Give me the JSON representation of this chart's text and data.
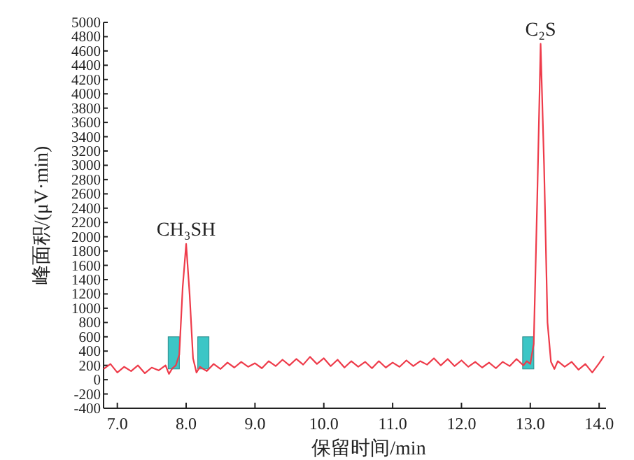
{
  "chart_data": {
    "type": "line",
    "xlabel": "保留时间/min",
    "ylabel": "峰面积/(μV·min)",
    "xlim": [
      6.8,
      14.1
    ],
    "ylim": [
      -400,
      5000
    ],
    "xticks": [
      {
        "value": 7,
        "label": "7.0"
      },
      {
        "value": 8,
        "label": "8.0"
      },
      {
        "value": 9,
        "label": "9.0"
      },
      {
        "value": 10,
        "label": "10.0"
      },
      {
        "value": 11,
        "label": "11.0"
      },
      {
        "value": 12,
        "label": "12.0"
      },
      {
        "value": 13,
        "label": "13.0"
      },
      {
        "value": 14,
        "label": "14.0"
      }
    ],
    "yticks": [
      -400,
      -200,
      0,
      200,
      400,
      600,
      800,
      1000,
      1200,
      1400,
      1600,
      1800,
      2000,
      2200,
      2400,
      2600,
      2800,
      3000,
      3200,
      3400,
      3600,
      3800,
      4000,
      4200,
      4400,
      4600,
      4800,
      5000
    ],
    "annotations": [
      {
        "text": "CH₃SH",
        "x": 8.0,
        "y": 1900
      },
      {
        "text": "C₂S",
        "x": 13.15,
        "y": 4700
      }
    ],
    "series": [
      {
        "color": "#ee3b4a",
        "x": [
          6.8,
          6.9,
          7.0,
          7.1,
          7.2,
          7.3,
          7.4,
          7.5,
          7.6,
          7.7,
          7.75,
          7.8,
          7.85,
          7.9,
          7.95,
          8.0,
          8.05,
          8.1,
          8.15,
          8.2,
          8.3,
          8.4,
          8.5,
          8.6,
          8.7,
          8.8,
          8.9,
          9.0,
          9.1,
          9.2,
          9.3,
          9.4,
          9.5,
          9.6,
          9.7,
          9.8,
          9.9,
          10.0,
          10.1,
          10.2,
          10.3,
          10.4,
          10.5,
          10.6,
          10.7,
          10.8,
          10.9,
          11.0,
          11.1,
          11.2,
          11.3,
          11.4,
          11.5,
          11.6,
          11.7,
          11.8,
          11.9,
          12.0,
          12.1,
          12.2,
          12.3,
          12.4,
          12.5,
          12.6,
          12.7,
          12.8,
          12.9,
          12.95,
          13.0,
          13.05,
          13.1,
          13.15,
          13.2,
          13.25,
          13.3,
          13.35,
          13.4,
          13.5,
          13.6,
          13.7,
          13.8,
          13.9,
          14.0,
          14.07
        ],
        "values": [
          150,
          220,
          100,
          180,
          120,
          200,
          90,
          170,
          130,
          200,
          80,
          160,
          200,
          350,
          1300,
          1900,
          1200,
          300,
          100,
          180,
          120,
          220,
          150,
          240,
          170,
          250,
          180,
          230,
          160,
          260,
          190,
          280,
          200,
          290,
          210,
          320,
          220,
          300,
          190,
          280,
          170,
          260,
          180,
          250,
          160,
          260,
          170,
          240,
          180,
          270,
          190,
          260,
          210,
          300,
          200,
          290,
          190,
          270,
          180,
          250,
          170,
          240,
          160,
          250,
          190,
          290,
          200,
          260,
          220,
          500,
          2500,
          4700,
          3000,
          800,
          250,
          150,
          260,
          180,
          250,
          140,
          220,
          100,
          230,
          330
        ]
      }
    ]
  }
}
